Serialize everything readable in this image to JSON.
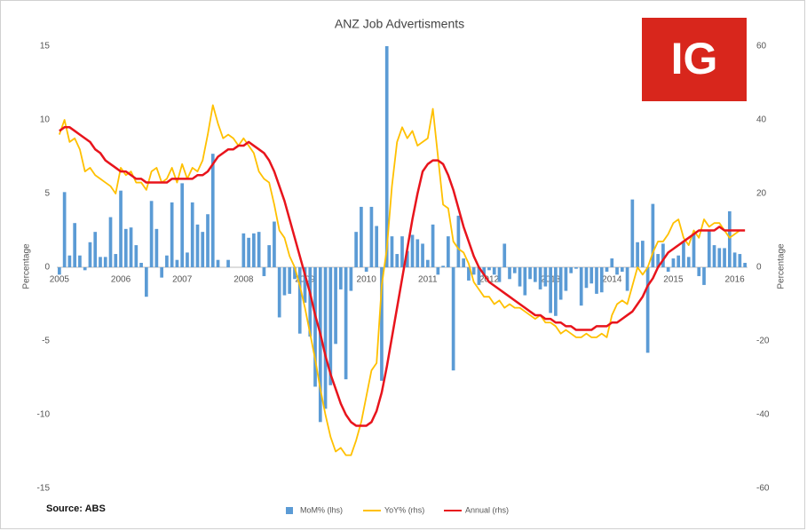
{
  "chart_data": {
    "type": "combo",
    "title": "ANZ Job Advertisments",
    "source": "Source: ABS",
    "logo": "IG",
    "ylabel": "Percentage",
    "y2label": "Percentage",
    "categories": [
      "2005",
      null,
      null,
      null,
      null,
      null,
      null,
      null,
      null,
      null,
      null,
      null,
      "2006",
      null,
      null,
      null,
      null,
      null,
      null,
      null,
      null,
      null,
      null,
      null,
      "2007",
      null,
      null,
      null,
      null,
      null,
      null,
      null,
      null,
      null,
      null,
      null,
      "2008",
      null,
      null,
      null,
      null,
      null,
      null,
      null,
      null,
      null,
      null,
      null,
      "2009",
      null,
      null,
      null,
      null,
      null,
      null,
      null,
      null,
      null,
      null,
      null,
      "2010",
      null,
      null,
      null,
      null,
      null,
      null,
      null,
      null,
      null,
      null,
      null,
      "2011",
      null,
      null,
      null,
      null,
      null,
      null,
      null,
      null,
      null,
      null,
      null,
      "2012",
      null,
      null,
      null,
      null,
      null,
      null,
      null,
      null,
      null,
      null,
      null,
      "2013",
      null,
      null,
      null,
      null,
      null,
      null,
      null,
      null,
      null,
      null,
      null,
      "2014",
      null,
      null,
      null,
      null,
      null,
      null,
      null,
      null,
      null,
      null,
      null,
      "2015",
      null,
      null,
      null,
      null,
      null,
      null,
      null,
      null,
      null,
      null,
      null,
      "2016",
      null,
      null
    ],
    "ylim": [
      -15,
      15
    ],
    "yticks": [
      15,
      10,
      5,
      0,
      -5,
      -10,
      -15
    ],
    "y2lim": [
      -60,
      60
    ],
    "y2ticks": [
      60,
      40,
      20,
      0,
      -20,
      -40,
      -60
    ],
    "legend": "bottom",
    "series": [
      {
        "name": "MoM% (lhs)",
        "type": "bar",
        "color": "#5b9bd5",
        "values": [
          -0.5,
          5.1,
          0.8,
          3.0,
          0.8,
          -0.2,
          1.7,
          2.4,
          0.7,
          0.7,
          3.4,
          0.9,
          5.2,
          2.6,
          2.7,
          1.5,
          0.3,
          -2.0,
          4.5,
          2.6,
          -0.7,
          0.8,
          4.4,
          0.5,
          5.7,
          1.0,
          4.4,
          2.9,
          2.4,
          3.6,
          7.7,
          0.5,
          0,
          0.5,
          0,
          0,
          2.3,
          2.0,
          2.3,
          2.4,
          -0.6,
          1.5,
          3.1,
          -3.4,
          -1.9,
          -1.8,
          -0.8,
          -4.5,
          -2.4,
          -4.7,
          -8.1,
          -10.5,
          -9.6,
          -8.0,
          -5.2,
          -1.5,
          -7.6,
          -1.6,
          2.4,
          4.1,
          -0.3,
          4.1,
          2.8,
          -7.7,
          15.0,
          2.1,
          0.9,
          2.1,
          1.1,
          2.2,
          1.9,
          1.6,
          0.5,
          2.9,
          -0.5,
          0.1,
          2.1,
          -7.0,
          3.5,
          0.6,
          -0.9,
          -0.5,
          -1.2,
          -0.6,
          -0.2,
          -0.5,
          -1.0,
          1.6,
          -0.8,
          -0.4,
          -1.3,
          -1.9,
          -0.8,
          -1.0,
          -1.5,
          -1.3,
          -3.1,
          -3.3,
          -2.2,
          -1.6,
          -0.4,
          -0.1,
          -2.6,
          -1.4,
          -1.1,
          -1.8,
          -1.7,
          -0.3,
          0.6,
          -0.5,
          -0.3,
          -1.6,
          4.6,
          1.7,
          1.8,
          -5.8,
          4.3,
          0.9,
          1.6,
          -0.3,
          0.6,
          0.8,
          1.7,
          0.7,
          2.3,
          -0.6,
          -1.2,
          2.5,
          1.5,
          1.3,
          1.3,
          3.8,
          1.0,
          0.9,
          0.3
        ]
      },
      {
        "name": "YoY% (rhs)",
        "type": "line",
        "axis": "y2",
        "color": "#ffc000",
        "values": [
          36,
          40,
          34,
          35,
          32,
          26,
          27,
          25,
          24,
          23,
          22,
          20,
          27,
          25,
          26,
          23,
          23,
          21,
          26,
          27,
          23,
          24,
          27,
          23,
          28,
          24,
          27,
          26,
          29,
          36,
          44,
          39,
          35,
          36,
          35,
          33,
          35,
          33,
          31,
          26,
          24,
          23,
          17,
          10,
          8,
          3,
          0,
          -5,
          -11,
          -18,
          -25,
          -33,
          -40,
          -46,
          -50,
          -49,
          -51,
          -51,
          -47,
          -42,
          -35,
          -28,
          -26,
          -5,
          5,
          22,
          34,
          38,
          35,
          37,
          33,
          34,
          35,
          43,
          30,
          17,
          16,
          7,
          5,
          4,
          1,
          -4,
          -6,
          -8,
          -8,
          -10,
          -9,
          -11,
          -10,
          -11,
          -11,
          -12,
          -13,
          -14,
          -13,
          -15,
          -15,
          -16,
          -18,
          -17,
          -18,
          -19,
          -19,
          -18,
          -19,
          -19,
          -18,
          -19,
          -13,
          -10,
          -9,
          -10,
          -5,
          0,
          -2,
          0,
          4,
          7,
          7,
          9,
          12,
          13,
          8,
          6,
          10,
          8,
          13,
          11,
          12,
          12,
          10,
          8,
          9,
          10,
          10
        ]
      },
      {
        "name": "Annual (rhs)",
        "type": "line",
        "axis": "y2",
        "color": "#e8141c",
        "values": [
          37,
          38,
          38,
          37,
          36,
          35,
          34,
          32,
          31,
          29,
          28,
          27,
          26,
          26,
          25,
          24,
          24,
          23,
          23,
          23,
          23,
          23,
          24,
          24,
          24,
          24,
          24,
          25,
          25,
          26,
          28,
          30,
          31,
          32,
          32,
          33,
          33,
          34,
          33,
          32,
          31,
          29,
          26,
          22,
          18,
          13,
          8,
          3,
          -2,
          -7,
          -13,
          -18,
          -24,
          -29,
          -33,
          -37,
          -40,
          -42,
          -43,
          -43,
          -43,
          -42,
          -39,
          -34,
          -27,
          -19,
          -11,
          -3,
          5,
          13,
          20,
          26,
          28,
          29,
          29,
          28,
          25,
          21,
          16,
          11,
          7,
          3,
          0,
          -2,
          -4,
          -5,
          -6,
          -7,
          -8,
          -9,
          -10,
          -11,
          -12,
          -13,
          -13,
          -14,
          -14,
          -15,
          -15,
          -16,
          -16,
          -17,
          -17,
          -17,
          -17,
          -16,
          -16,
          -16,
          -15,
          -15,
          -14,
          -13,
          -12,
          -10,
          -8,
          -5,
          -3,
          0,
          2,
          4,
          5,
          6,
          7,
          8,
          9,
          10,
          10,
          10,
          10,
          11,
          10,
          10,
          10,
          10,
          10
        ]
      }
    ]
  }
}
